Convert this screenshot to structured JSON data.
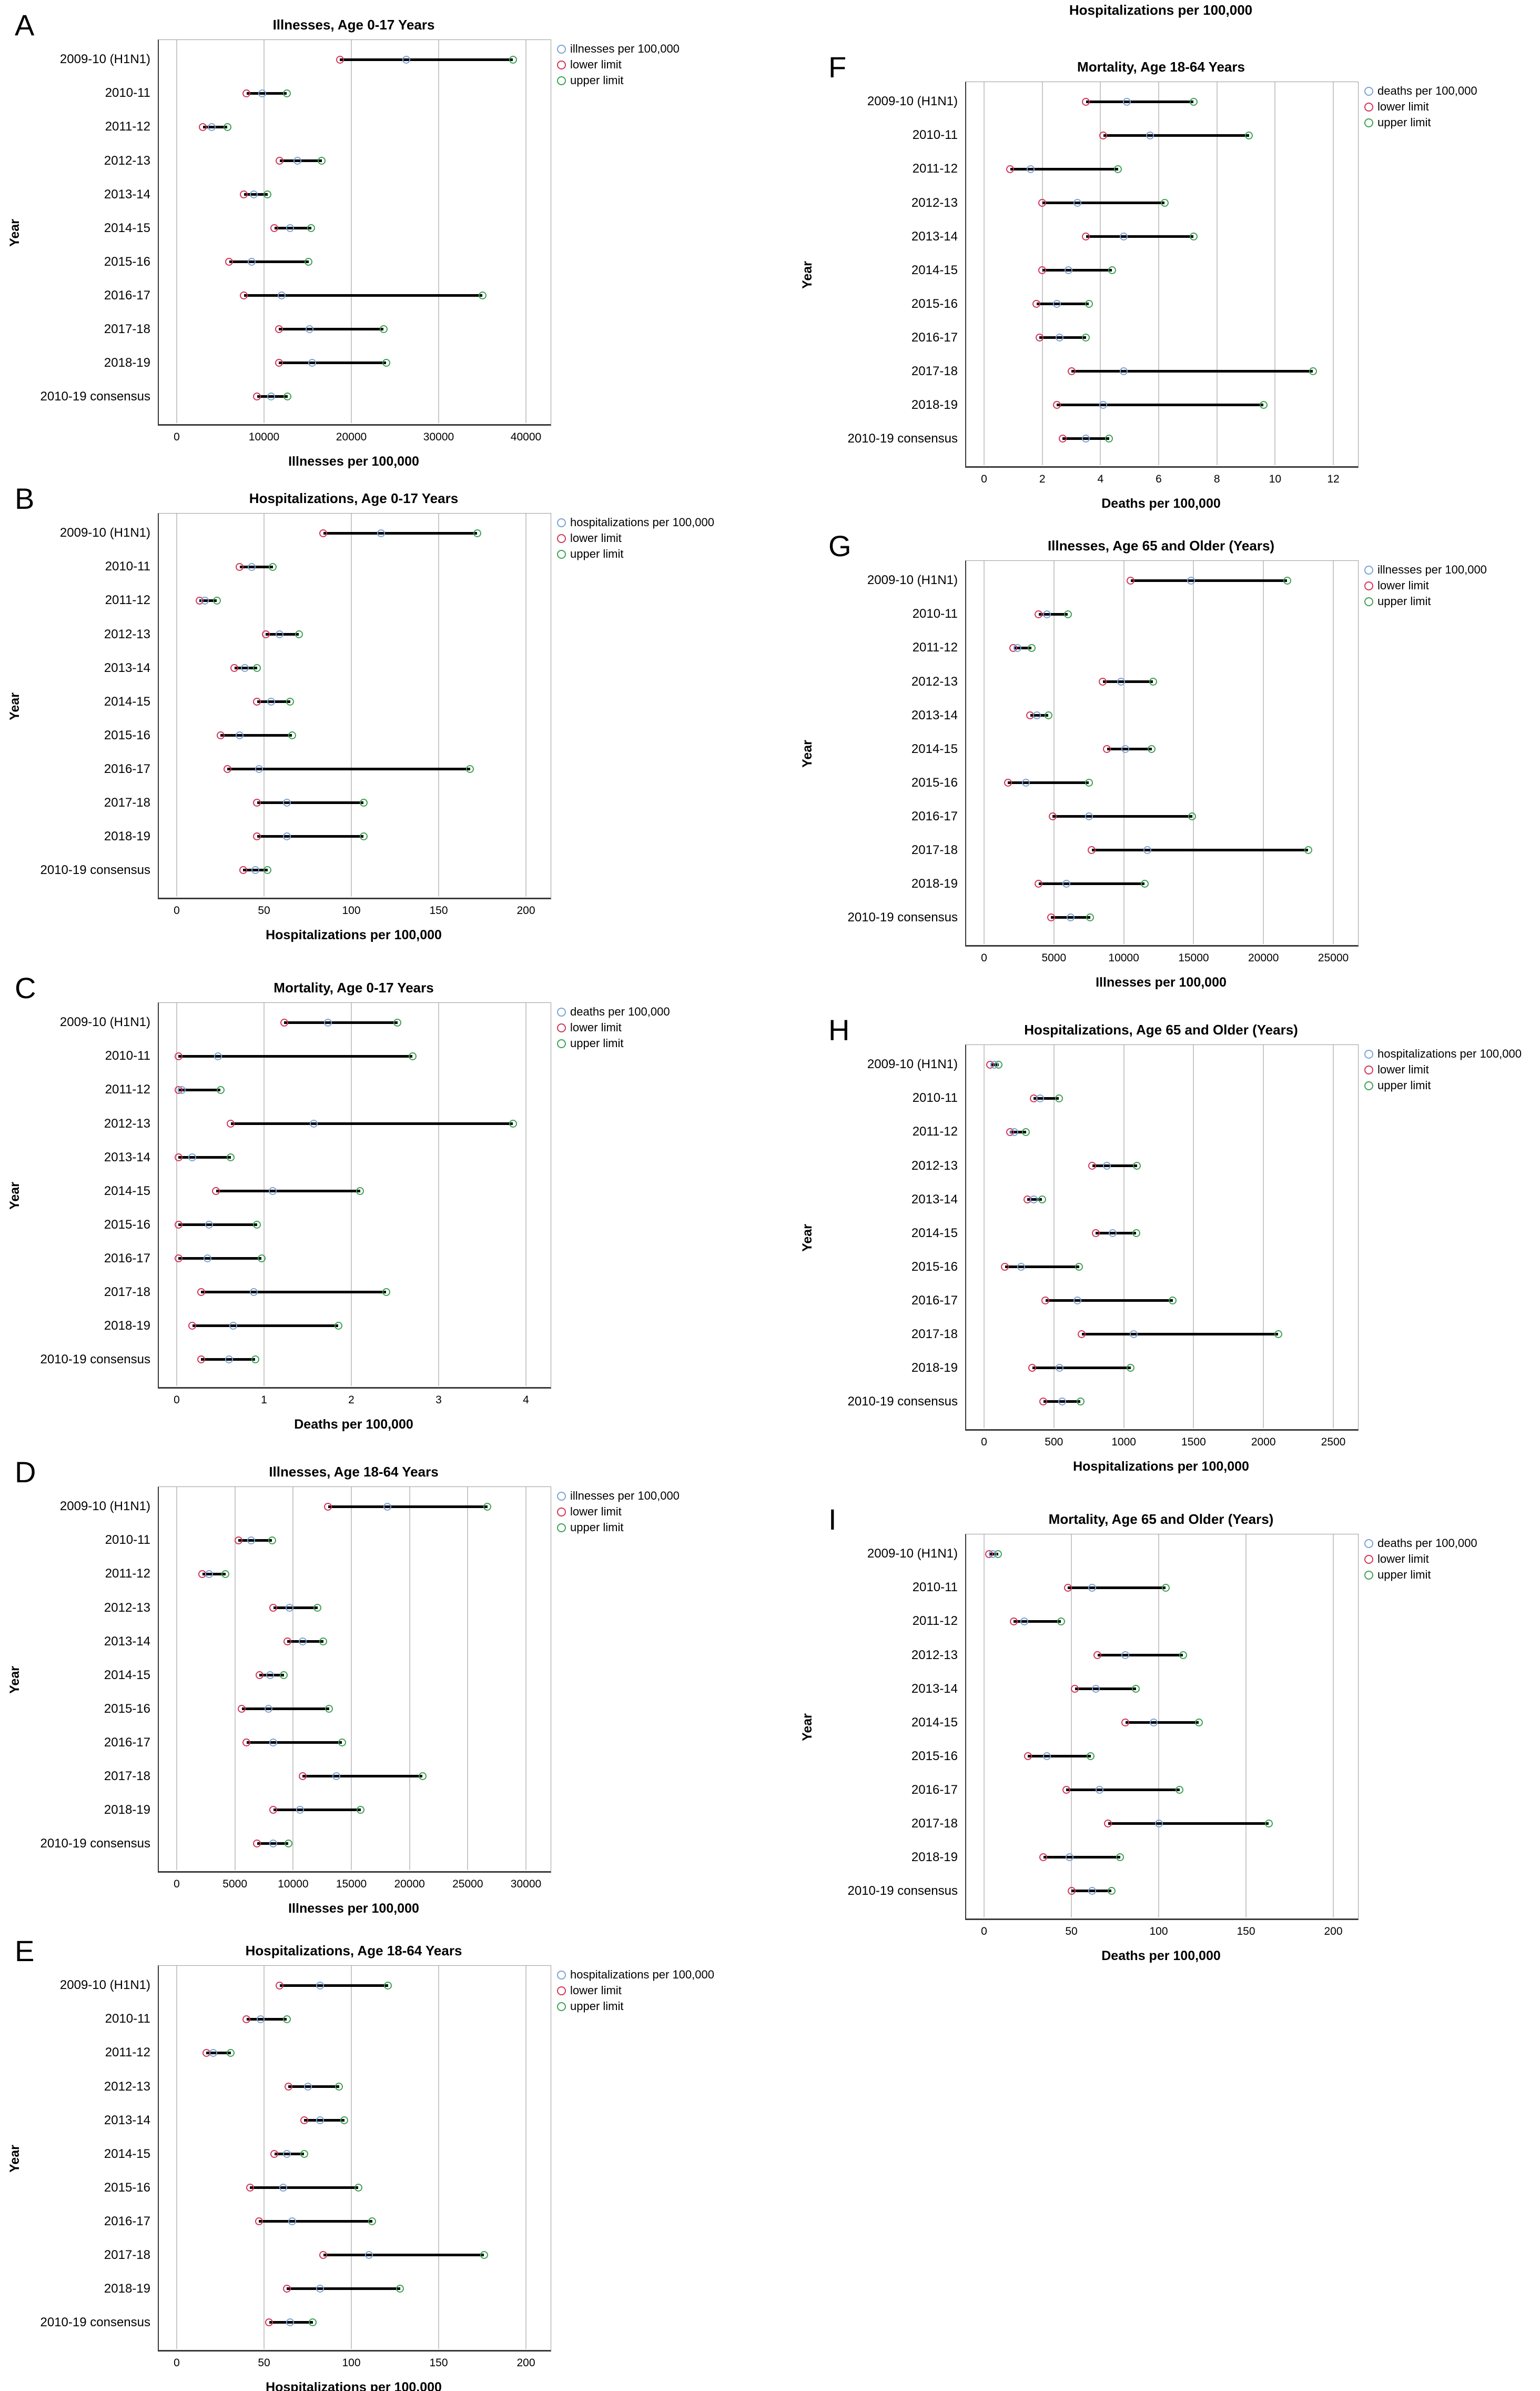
{
  "page": {
    "top_label": "Hospitalizations per 100,000"
  },
  "colors": {
    "estimate": "#7ba2d6",
    "lower": "#d23559",
    "upper": "#3da153",
    "range_line": "#000000",
    "gridline": "#c9c9c9",
    "axis": "#3a3a3a",
    "frame": "#9a9a9a"
  },
  "y_axis_label": "Year",
  "chart_data": {
    "type": "dot-range",
    "categories": [
      "2009-10 (H1N1)",
      "2010-11",
      "2011-12",
      "2012-13",
      "2013-14",
      "2014-15",
      "2015-16",
      "2016-17",
      "2017-18",
      "2018-19",
      "2010-19 consensus"
    ],
    "panels": [
      {
        "letter": "A",
        "title": "Illnesses, Age 0-17 Years",
        "xlabel": "Illnesses per 100,000",
        "legend": [
          "illnesses per 100,000",
          "lower limit",
          "upper limit"
        ],
        "xlim": [
          0,
          40000
        ],
        "xticks": [
          0,
          10000,
          20000,
          30000,
          40000
        ],
        "lower": [
          18700,
          8000,
          3000,
          11800,
          7700,
          11200,
          6000,
          7700,
          11700,
          11700,
          9200
        ],
        "estimate": [
          26300,
          9800,
          4000,
          13800,
          8800,
          13000,
          8600,
          12000,
          15200,
          15500,
          10800
        ],
        "upper": [
          38500,
          12600,
          5800,
          16600,
          10400,
          15400,
          15100,
          35000,
          23700,
          24000,
          12700
        ]
      },
      {
        "letter": "B",
        "title": "Hospitalizations, Age 0-17 Years",
        "xlabel": "Hospitalizations per 100,000",
        "legend": [
          "hospitalizations per 100,000",
          "lower limit",
          "upper limit"
        ],
        "xlim": [
          0,
          200
        ],
        "xticks": [
          0,
          50,
          100,
          150,
          200
        ],
        "lower": [
          84,
          36,
          13,
          51,
          33,
          46,
          25,
          29,
          46,
          46,
          38
        ],
        "estimate": [
          117,
          43,
          16,
          59,
          39,
          54,
          36,
          47,
          63,
          63,
          45
        ],
        "upper": [
          172,
          55,
          23,
          70,
          46,
          65,
          66,
          168,
          107,
          107,
          52
        ]
      },
      {
        "letter": "C",
        "title": "Mortality, Age 0-17 Years",
        "xlabel": "Deaths per 100,000",
        "legend": [
          "deaths per 100,000",
          "lower limit",
          "upper limit"
        ],
        "xlim": [
          0,
          4
        ],
        "xticks": [
          0,
          1,
          2,
          3,
          4
        ],
        "lower": [
          1.23,
          0.02,
          0.02,
          0.62,
          0.02,
          0.45,
          0.02,
          0.02,
          0.28,
          0.18,
          0.28
        ],
        "estimate": [
          1.73,
          0.47,
          0.06,
          1.57,
          0.18,
          1.1,
          0.37,
          0.35,
          0.88,
          0.65,
          0.6
        ],
        "upper": [
          2.53,
          2.7,
          0.5,
          3.85,
          0.62,
          2.1,
          0.92,
          0.97,
          2.4,
          1.85,
          0.9
        ]
      },
      {
        "letter": "D",
        "title": "Illnesses, Age 18-64 Years",
        "xlabel": "Illnesses per 100,000",
        "legend": [
          "illnesses per 100,000",
          "lower limit",
          "upper limit"
        ],
        "xlim": [
          0,
          30000
        ],
        "xticks": [
          0,
          5000,
          10000,
          15000,
          20000,
          25000,
          30000
        ],
        "lower": [
          13000,
          5300,
          2200,
          8300,
          9500,
          7100,
          5600,
          6000,
          10800,
          8300,
          6900
        ],
        "estimate": [
          18100,
          6400,
          2800,
          9700,
          10800,
          8000,
          7900,
          8300,
          13700,
          10600,
          8300
        ],
        "upper": [
          26700,
          8200,
          4200,
          12100,
          12600,
          9200,
          13100,
          14200,
          21100,
          15800,
          9600
        ]
      },
      {
        "letter": "E",
        "title": "Hospitalizations, Age 18-64 Years",
        "xlabel": "Hospitalizations per 100,000",
        "legend": [
          "hospitalizations per 100,000",
          "lower limit",
          "upper limit"
        ],
        "xlim": [
          0,
          200
        ],
        "xticks": [
          0,
          50,
          100,
          150,
          200
        ],
        "lower": [
          59,
          40,
          17,
          64,
          73,
          56,
          42,
          47,
          84,
          63,
          53
        ],
        "estimate": [
          82,
          48,
          21,
          75,
          82,
          63,
          61,
          66,
          110,
          82,
          65
        ],
        "upper": [
          121,
          63,
          31,
          93,
          96,
          73,
          104,
          112,
          176,
          128,
          78
        ]
      },
      {
        "letter": "F",
        "title": "Mortality, Age 18-64 Years",
        "xlabel": "Deaths per 100,000",
        "legend": [
          "deaths per 100,000",
          "lower limit",
          "upper limit"
        ],
        "xlim": [
          0,
          12
        ],
        "xticks": [
          0,
          2,
          4,
          6,
          8,
          10,
          12
        ],
        "lower": [
          3.5,
          4.1,
          0.9,
          2.0,
          3.5,
          2.0,
          1.8,
          1.9,
          3.0,
          2.5,
          2.7
        ],
        "estimate": [
          4.9,
          5.7,
          1.6,
          3.2,
          4.8,
          2.9,
          2.5,
          2.6,
          4.8,
          4.1,
          3.5
        ],
        "upper": [
          7.2,
          9.1,
          4.6,
          6.2,
          7.2,
          4.4,
          3.6,
          3.5,
          11.3,
          9.6,
          4.3
        ]
      },
      {
        "letter": "G",
        "title": "Illnesses, Age 65 and Older (Years)",
        "xlabel": "Illnesses per 100,000",
        "legend": [
          "illnesses per 100,000",
          "lower limit",
          "upper limit"
        ],
        "xlim": [
          0,
          25000
        ],
        "xticks": [
          0,
          5000,
          10000,
          15000,
          20000,
          25000
        ],
        "lower": [
          10500,
          3900,
          2100,
          8500,
          3300,
          8800,
          1700,
          4900,
          7700,
          3900,
          4800
        ],
        "estimate": [
          14800,
          4500,
          2400,
          9800,
          3800,
          10100,
          3000,
          7500,
          11700,
          5900,
          6200
        ],
        "upper": [
          21700,
          6000,
          3400,
          12100,
          4600,
          12000,
          7500,
          14900,
          23200,
          11500,
          7600
        ]
      },
      {
        "letter": "H",
        "title": "Hospitalizations, Age 65 and Older (Years)",
        "xlabel": "Hospitalizations per 100,000",
        "legend": [
          "hospitalizations per 100,000",
          "lower limit",
          "upper limit"
        ],
        "xlim": [
          0,
          2500
        ],
        "xticks": [
          0,
          500,
          1000,
          1500,
          2000,
          2500
        ],
        "lower": [
          45,
          355,
          185,
          775,
          310,
          800,
          150,
          440,
          700,
          345,
          425
        ],
        "estimate": [
          75,
          400,
          215,
          880,
          355,
          920,
          265,
          670,
          1070,
          540,
          560
        ],
        "upper": [
          105,
          535,
          300,
          1095,
          415,
          1090,
          680,
          1350,
          2105,
          1050,
          690
        ]
      },
      {
        "letter": "I",
        "title": "Mortality, Age 65 and Older (Years)",
        "xlabel": "Deaths per 100,000",
        "legend": [
          "deaths per 100,000",
          "lower limit",
          "upper limit"
        ],
        "xlim": [
          0,
          200
        ],
        "xticks": [
          0,
          50,
          100,
          150,
          200
        ],
        "lower": [
          3,
          48,
          17,
          65,
          52,
          81,
          25,
          47,
          71,
          34,
          50
        ],
        "estimate": [
          5,
          62,
          23,
          81,
          64,
          97,
          36,
          66,
          100,
          49,
          62
        ],
        "upper": [
          8,
          104,
          44,
          114,
          87,
          123,
          61,
          112,
          163,
          78,
          73
        ]
      }
    ]
  }
}
